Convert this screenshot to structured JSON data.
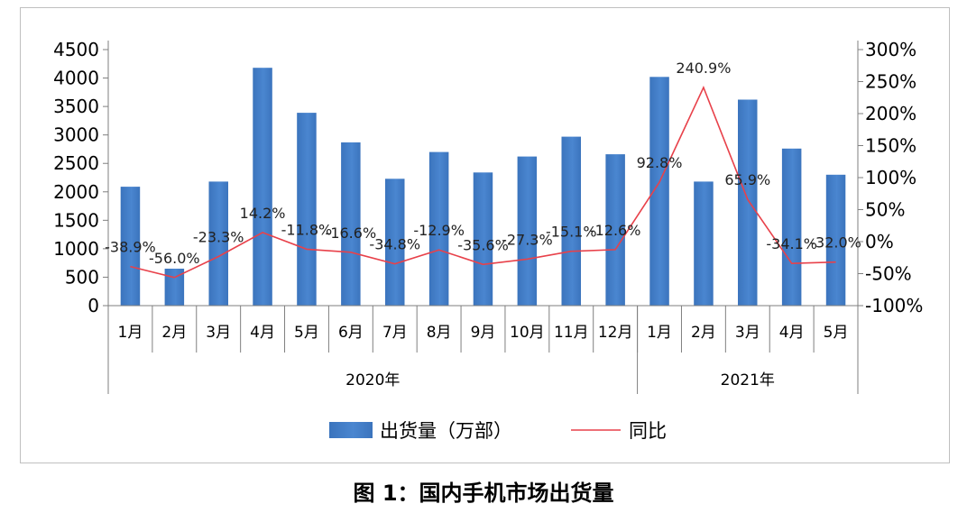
{
  "caption": "图 1：国内手机市场出货量",
  "colors": {
    "bar": "#4a86d0",
    "bar_dark": "#3b74bd",
    "line": "#e8414a",
    "axis": "#7f7f7f"
  },
  "chart_data": {
    "type": "bar",
    "title": "",
    "categories": [
      "1月",
      "2月",
      "3月",
      "4月",
      "5月",
      "6月",
      "7月",
      "8月",
      "9月",
      "10月",
      "11月",
      "12月",
      "1月",
      "2月",
      "3月",
      "4月",
      "5月"
    ],
    "groups": [
      {
        "label": "2020年",
        "start": 0,
        "end": 11
      },
      {
        "label": "2021年",
        "start": 12,
        "end": 16
      }
    ],
    "series": [
      {
        "name": "出货量（万部）",
        "type": "bar",
        "axis": "left",
        "values": [
          2090,
          650,
          2180,
          4180,
          3390,
          2870,
          2230,
          2700,
          2340,
          2620,
          2970,
          2660,
          4020,
          2180,
          3620,
          2760,
          2300
        ]
      },
      {
        "name": "同比",
        "type": "line",
        "axis": "right",
        "values": [
          -38.9,
          -56.0,
          -23.3,
          14.2,
          -11.8,
          -16.6,
          -34.8,
          -12.9,
          -35.6,
          -27.3,
          -15.1,
          -12.6,
          92.8,
          240.9,
          65.9,
          -34.1,
          -32.0
        ],
        "labels": [
          "-38.9%",
          "-56.0%",
          "-23.3%",
          "14.2%",
          "-11.8%",
          "-16.6%",
          "-34.8%",
          "-12.9%",
          "-35.6%",
          "-27.3%",
          "-15.1%",
          "-12.6%",
          "92.8%",
          "240.9%",
          "65.9%",
          "-34.1%",
          "-32.0%"
        ]
      }
    ],
    "y_left": {
      "min": 0,
      "max": 4500,
      "step": 500,
      "ticks": [
        "0",
        "500",
        "1000",
        "1500",
        "2000",
        "2500",
        "3000",
        "3500",
        "4000",
        "4500"
      ]
    },
    "y_right": {
      "min": -100,
      "max": 300,
      "step": 50,
      "ticks": [
        "-100%",
        "-50%",
        "0%",
        "50%",
        "100%",
        "150%",
        "200%",
        "250%",
        "300%"
      ]
    },
    "grid": false,
    "legend_position": "bottom"
  }
}
